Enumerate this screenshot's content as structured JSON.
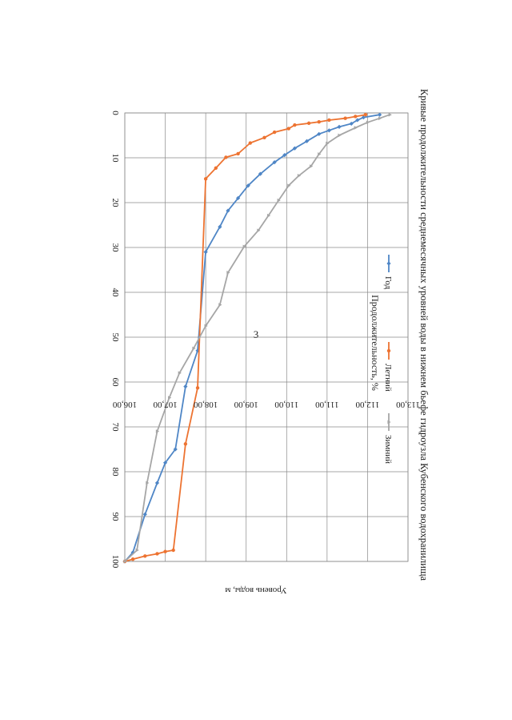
{
  "page_number": "3",
  "chart_data": {
    "type": "line",
    "title": "Кривые продолжительности среднемесячных уровней воды в нижнем бьефе гидроузла Кубенского водохранилища",
    "xlabel": "Продолжительность, %",
    "ylabel": "Уровень воды, м",
    "xlim": [
      0,
      100
    ],
    "ylim": [
      106,
      113
    ],
    "x_ticks": [
      0,
      10,
      20,
      30,
      40,
      50,
      60,
      70,
      80,
      90,
      100
    ],
    "y_ticks": [
      106,
      107,
      108,
      109,
      110,
      111,
      112,
      113
    ],
    "y_tick_labels": [
      "106,00",
      "107,00",
      "108,00",
      "109,00",
      "110,00",
      "111,00",
      "112,00",
      "113,00"
    ],
    "grid": true,
    "legend": "top",
    "series": [
      {
        "name": "Год",
        "color": "#4f86c6",
        "x": [
          0.4,
          1.0,
          1.6,
          2.4,
          3.1,
          3.9,
          4.7,
          6.3,
          7.9,
          9.4,
          11.0,
          13.6,
          16.2,
          19.0,
          21.8,
          25.4,
          31.0,
          53.0,
          61.0,
          75.0,
          78.0,
          82.5,
          89.5,
          98.0,
          100
        ],
        "y": [
          112.3,
          111.9,
          111.75,
          111.6,
          111.3,
          111.05,
          110.8,
          110.5,
          110.2,
          109.95,
          109.7,
          109.35,
          109.05,
          108.8,
          108.55,
          108.35,
          108.0,
          107.8,
          107.5,
          107.25,
          107.0,
          106.8,
          106.5,
          106.2,
          106.0
        ]
      },
      {
        "name": "Летний",
        "color": "#ed7331",
        "x": [
          0.4,
          0.8,
          1.2,
          1.6,
          2.0,
          2.3,
          2.7,
          3.5,
          4.3,
          5.5,
          6.7,
          9.1,
          9.9,
          12.3,
          14.7,
          61.3,
          73.8,
          97.5,
          97.8,
          98.3,
          98.8,
          99.5,
          100
        ],
        "y": [
          111.95,
          111.7,
          111.45,
          111.05,
          110.8,
          110.55,
          110.2,
          110.05,
          109.7,
          109.45,
          109.1,
          108.8,
          108.5,
          108.25,
          108.0,
          107.8,
          107.5,
          107.2,
          107.0,
          106.8,
          106.5,
          106.2,
          106.0
        ]
      },
      {
        "name": "Зимний",
        "color": "#a6a6a6",
        "x": [
          0.4,
          1.2,
          2.1,
          3.3,
          5.0,
          6.8,
          9.2,
          11.9,
          14.0,
          16.2,
          19.5,
          22.9,
          26.2,
          29.8,
          35.6,
          42.8,
          47.5,
          52.5,
          58.0,
          63.5,
          71.0,
          82.5,
          97.5,
          100
        ],
        "y": [
          112.55,
          112.3,
          112.0,
          111.7,
          111.3,
          111.0,
          110.8,
          110.6,
          110.3,
          110.05,
          109.8,
          109.55,
          109.3,
          108.95,
          108.55,
          108.35,
          108.0,
          107.7,
          107.35,
          107.1,
          106.8,
          106.55,
          106.3,
          106.0
        ]
      }
    ]
  }
}
